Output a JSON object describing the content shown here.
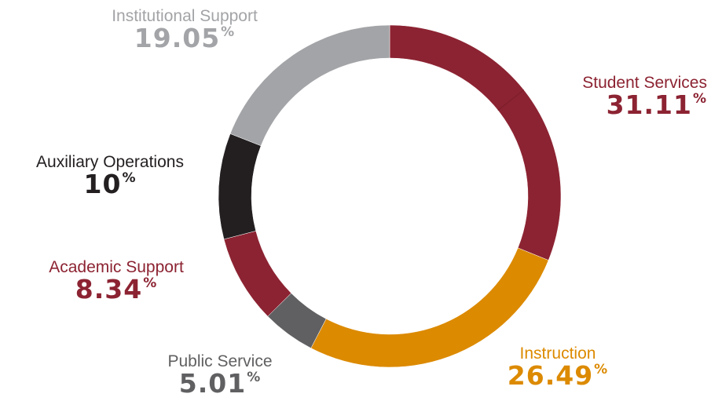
{
  "chart_data": {
    "type": "pie",
    "title": "",
    "categories": [
      "Student Services",
      "Instruction",
      "Public Service",
      "Academic Support",
      "Auxiliary Operations",
      "Institutional Support"
    ],
    "values": [
      31.11,
      26.49,
      5.01,
      8.34,
      10,
      19.05
    ],
    "value_labels": [
      "31.11",
      "26.49",
      "5.01",
      "8.34",
      "10",
      "19.05"
    ],
    "unit": "%",
    "colors": [
      "#8c2332",
      "#dc8a00",
      "#606062",
      "#8c2332",
      "#231f20",
      "#a3a4a7"
    ],
    "style": "donut",
    "start_angle_deg": 0,
    "direction": "clockwise"
  }
}
